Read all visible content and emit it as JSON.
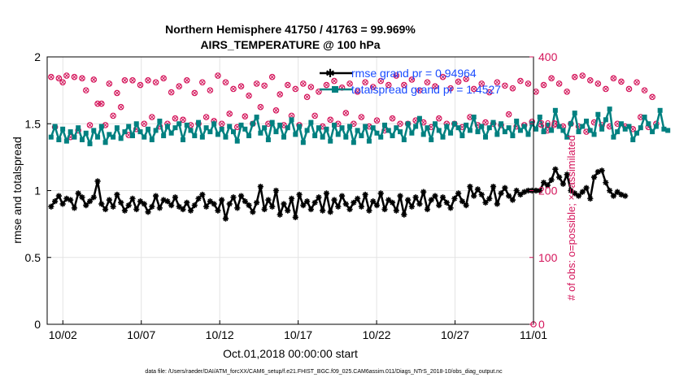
{
  "chart_data": {
    "type": "line",
    "title": "Northern Hemisphere 41750 / 41763 = 99.969%",
    "subtitle": "AIRS_TEMPERATURE @ 100 hPa",
    "xlabel": "Oct.01,2018 00:00:00 start",
    "ylabel": "rmse and totalspread",
    "y2label": "# of obs: o=possible; ×=assimilated",
    "xlim": [
      0,
      31
    ],
    "ylim": [
      0,
      2
    ],
    "y2lim": [
      0,
      400
    ],
    "x_ticks": [
      {
        "day": 1,
        "label": "10/02"
      },
      {
        "day": 6,
        "label": "10/07"
      },
      {
        "day": 11,
        "label": "10/12"
      },
      {
        "day": 16,
        "label": "10/17"
      },
      {
        "day": 21,
        "label": "10/22"
      },
      {
        "day": 26,
        "label": "10/27"
      },
      {
        "day": 31,
        "label": "11/01"
      }
    ],
    "y_ticks": [
      "0",
      "0.5",
      "1",
      "1.5",
      "2"
    ],
    "y2_ticks": [
      "0",
      "100",
      "200",
      "300",
      "400"
    ],
    "x_step_days": 0.25,
    "legend_position": "top-right",
    "series": [
      {
        "name": "rmse grand pr = 0.94964",
        "color": "#000000",
        "values": [
          0.88,
          0.92,
          0.96,
          0.9,
          0.94,
          0.93,
          0.87,
          0.98,
          0.95,
          0.89,
          0.92,
          0.95,
          1.07,
          0.9,
          0.86,
          0.93,
          0.88,
          0.97,
          0.91,
          0.85,
          0.89,
          0.94,
          0.86,
          0.92,
          0.9,
          0.84,
          0.88,
          0.96,
          0.87,
          0.93,
          0.92,
          0.89,
          0.95,
          0.88,
          0.86,
          0.91,
          0.85,
          0.89,
          0.94,
          0.97,
          0.88,
          0.92,
          0.9,
          0.85,
          0.93,
          0.79,
          0.9,
          0.95,
          0.87,
          0.96,
          0.92,
          0.89,
          0.84,
          0.91,
          1.03,
          0.86,
          0.93,
          0.88,
          1.0,
          0.82,
          0.9,
          0.85,
          0.94,
          0.8,
          0.97,
          0.89,
          0.92,
          0.86,
          0.91,
          0.95,
          0.85,
          0.98,
          0.84,
          0.93,
          0.88,
          0.96,
          0.9,
          0.86,
          0.91,
          0.94,
          0.88,
          0.97,
          0.85,
          0.92,
          0.89,
          0.98,
          0.86,
          0.93,
          0.91,
          0.85,
          0.96,
          0.82,
          0.93,
          0.88,
          0.95,
          0.9,
          0.99,
          0.86,
          0.93,
          0.96,
          0.89,
          0.95,
          0.91,
          0.87,
          0.94,
          0.98,
          0.92,
          0.89,
          1.03,
          0.96,
          1.01,
          0.97,
          0.91,
          0.94,
          1.03,
          0.9,
          0.98,
          1.02,
          0.96,
          0.93,
          1.0,
          0.97,
          0.99,
          1.0,
          1.0,
          1.0,
          1.0,
          1.06,
          1.04,
          1.08,
          1.16,
          1.1,
          1.05,
          1.12,
          1.0,
          0.98,
          0.96,
          0.99,
          1.02,
          0.94,
          1.1,
          1.14,
          1.15,
          1.06,
          1.0,
          0.96,
          0.99,
          0.97,
          0.96
        ]
      },
      {
        "name": "totalspread grand pr = 1.4527",
        "color": "#008080",
        "values": [
          1.4,
          1.48,
          1.38,
          1.46,
          1.37,
          1.44,
          1.4,
          1.47,
          1.38,
          1.43,
          1.35,
          1.45,
          1.4,
          1.48,
          1.36,
          1.42,
          1.4,
          1.47,
          1.39,
          1.44,
          1.48,
          1.41,
          1.5,
          1.44,
          1.4,
          1.46,
          1.38,
          1.45,
          1.52,
          1.41,
          1.48,
          1.43,
          1.47,
          1.5,
          1.38,
          1.49,
          1.45,
          1.41,
          1.51,
          1.4,
          1.47,
          1.44,
          1.5,
          1.42,
          1.46,
          1.4,
          1.48,
          1.44,
          1.37,
          1.49,
          1.46,
          1.41,
          1.5,
          1.55,
          1.43,
          1.47,
          1.38,
          1.51,
          1.44,
          1.49,
          1.4,
          1.47,
          1.53,
          1.42,
          1.48,
          1.36,
          1.45,
          1.51,
          1.41,
          1.47,
          1.4,
          1.46,
          1.37,
          1.49,
          1.42,
          1.47,
          1.4,
          1.48,
          1.36,
          1.45,
          1.41,
          1.48,
          1.37,
          1.47,
          1.43,
          1.4,
          1.49,
          1.45,
          1.41,
          1.47,
          1.44,
          1.38,
          1.5,
          1.43,
          1.48,
          1.54,
          1.42,
          1.47,
          1.38,
          1.5,
          1.45,
          1.4,
          1.48,
          1.43,
          1.5,
          1.47,
          1.41,
          1.49,
          1.45,
          1.55,
          1.44,
          1.48,
          1.4,
          1.47,
          1.51,
          1.42,
          1.5,
          1.44,
          1.47,
          1.41,
          1.52,
          1.45,
          1.48,
          1.42,
          1.5,
          1.46,
          1.55,
          1.44,
          1.49,
          1.45,
          1.6,
          1.48,
          1.45,
          1.4,
          1.5,
          1.58,
          1.44,
          1.48,
          1.52,
          1.45,
          1.42,
          1.57,
          1.46,
          1.53,
          1.61,
          1.4,
          1.44,
          1.5,
          1.46,
          1.48,
          1.38,
          1.43,
          1.47,
          1.55,
          1.5,
          1.44,
          1.48,
          1.6,
          1.46,
          1.45
        ]
      }
    ],
    "obs_possible": {
      "name": "o=possible",
      "color": "#d4145a",
      "values": [
        370,
        295,
        368,
        362,
        372,
        280,
        370,
        290,
        368,
        350,
        298,
        366,
        330,
        330,
        298,
        360,
        312,
        346,
        325,
        365,
        283,
        365,
        292,
        358,
        300,
        365,
        310,
        362,
        296,
        368,
        300,
        347,
        308,
        356,
        306,
        365,
        298,
        346,
        300,
        362,
        310,
        350,
        304,
        372,
        300,
        362,
        315,
        352,
        295,
        356,
        311,
        342,
        300,
        360,
        325,
        357,
        300,
        370,
        320,
        344,
        298,
        358,
        312,
        352,
        298,
        360,
        340,
        355,
        312,
        348,
        296,
        358,
        306,
        364,
        300,
        354,
        316,
        360,
        300,
        348,
        310,
        362,
        296,
        355,
        305,
        364,
        290,
        358,
        308,
        372,
        300,
        358,
        300,
        366,
        305,
        350,
        302,
        362,
        295,
        356,
        308,
        370,
        300,
        353,
        300,
        363,
        295,
        367,
        310,
        352,
        298,
        360,
        302,
        347,
        300,
        362,
        298,
        357,
        314,
        353,
        296,
        364,
        298,
        360,
        303,
        348,
        300,
        358,
        290,
        368,
        300,
        360,
        296,
        348,
        300,
        370,
        296,
        372,
        288,
        365,
        302,
        360,
        298,
        352,
        296,
        368,
        300,
        363,
        296,
        352,
        292,
        362,
        310,
        350,
        295,
        340,
        300
      ]
    },
    "footer": "data file: /Users/raeder/DAI/ATM_forcXX/CAM6_setup/f.e21.FHIST_BGC.f09_025.CAM6assim.011/Diags_NTrS_2018-10/obs_diag_output.nc"
  }
}
